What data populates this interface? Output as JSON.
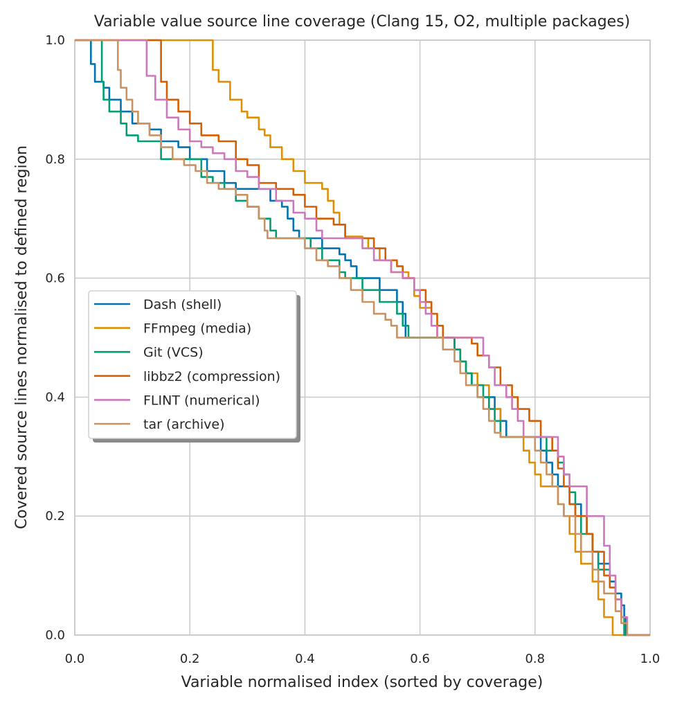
{
  "chart_data": {
    "type": "line",
    "title": "Variable value source line coverage (Clang 15, O2, multiple packages)",
    "xlabel": "Variable normalised index (sorted by coverage)",
    "ylabel": "Covered source lines normalised to defined region",
    "xlim": [
      0,
      1
    ],
    "ylim": [
      0,
      1
    ],
    "xticks": [
      "0.0",
      "0.2",
      "0.4",
      "0.6",
      "0.8",
      "1.0"
    ],
    "yticks": [
      "0.0",
      "0.2",
      "0.4",
      "0.6",
      "0.8",
      "1.0"
    ],
    "grid": true,
    "legend_position": "center-left",
    "series": [
      {
        "name": "Dash (shell)",
        "color": "#0173b2",
        "points": [
          [
            0,
            1.0
          ],
          [
            0.026,
            1.0
          ],
          [
            0.028,
            0.96
          ],
          [
            0.035,
            0.93
          ],
          [
            0.05,
            0.92
          ],
          [
            0.06,
            0.9
          ],
          [
            0.08,
            0.88
          ],
          [
            0.1,
            0.86
          ],
          [
            0.13,
            0.85
          ],
          [
            0.15,
            0.83
          ],
          [
            0.18,
            0.82
          ],
          [
            0.2,
            0.8
          ],
          [
            0.22,
            0.8
          ],
          [
            0.23,
            0.78
          ],
          [
            0.25,
            0.78
          ],
          [
            0.26,
            0.76
          ],
          [
            0.28,
            0.75
          ],
          [
            0.33,
            0.75
          ],
          [
            0.34,
            0.73
          ],
          [
            0.36,
            0.72
          ],
          [
            0.37,
            0.7
          ],
          [
            0.38,
            0.68
          ],
          [
            0.39,
            0.667
          ],
          [
            0.42,
            0.667
          ],
          [
            0.43,
            0.65
          ],
          [
            0.46,
            0.64
          ],
          [
            0.47,
            0.63
          ],
          [
            0.48,
            0.62
          ],
          [
            0.49,
            0.6
          ],
          [
            0.52,
            0.6
          ],
          [
            0.53,
            0.58
          ],
          [
            0.56,
            0.56
          ],
          [
            0.57,
            0.54
          ],
          [
            0.575,
            0.5
          ],
          [
            0.65,
            0.5
          ],
          [
            0.66,
            0.48
          ],
          [
            0.67,
            0.46
          ],
          [
            0.68,
            0.44
          ],
          [
            0.69,
            0.42
          ],
          [
            0.7,
            0.4
          ],
          [
            0.72,
            0.4
          ],
          [
            0.73,
            0.38
          ],
          [
            0.74,
            0.36
          ],
          [
            0.75,
            0.333
          ],
          [
            0.8,
            0.333
          ],
          [
            0.81,
            0.31
          ],
          [
            0.82,
            0.29
          ],
          [
            0.83,
            0.27
          ],
          [
            0.84,
            0.25
          ],
          [
            0.86,
            0.22
          ],
          [
            0.88,
            0.2
          ],
          [
            0.89,
            0.17
          ],
          [
            0.9,
            0.14
          ],
          [
            0.91,
            0.12
          ],
          [
            0.93,
            0.09
          ],
          [
            0.94,
            0.07
          ],
          [
            0.95,
            0.05
          ],
          [
            0.955,
            0.03
          ],
          [
            0.958,
            0.0
          ]
        ]
      },
      {
        "name": "FFmpeg (media)",
        "color": "#de8f05",
        "points": [
          [
            0,
            1.0
          ],
          [
            0.237,
            1.0
          ],
          [
            0.24,
            0.95
          ],
          [
            0.25,
            0.93
          ],
          [
            0.27,
            0.9
          ],
          [
            0.29,
            0.88
          ],
          [
            0.3,
            0.87
          ],
          [
            0.32,
            0.85
          ],
          [
            0.33,
            0.84
          ],
          [
            0.34,
            0.82
          ],
          [
            0.36,
            0.8
          ],
          [
            0.38,
            0.78
          ],
          [
            0.4,
            0.76
          ],
          [
            0.43,
            0.75
          ],
          [
            0.44,
            0.73
          ],
          [
            0.45,
            0.71
          ],
          [
            0.46,
            0.69
          ],
          [
            0.47,
            0.67
          ],
          [
            0.5,
            0.667
          ],
          [
            0.51,
            0.65
          ],
          [
            0.53,
            0.63
          ],
          [
            0.55,
            0.61
          ],
          [
            0.58,
            0.6
          ],
          [
            0.59,
            0.57
          ],
          [
            0.6,
            0.55
          ],
          [
            0.62,
            0.52
          ],
          [
            0.63,
            0.5
          ],
          [
            0.65,
            0.5
          ],
          [
            0.66,
            0.48
          ],
          [
            0.67,
            0.46
          ],
          [
            0.68,
            0.44
          ],
          [
            0.7,
            0.42
          ],
          [
            0.72,
            0.38
          ],
          [
            0.74,
            0.333
          ],
          [
            0.77,
            0.333
          ],
          [
            0.78,
            0.31
          ],
          [
            0.79,
            0.29
          ],
          [
            0.8,
            0.27
          ],
          [
            0.81,
            0.25
          ],
          [
            0.83,
            0.25
          ],
          [
            0.84,
            0.22
          ],
          [
            0.85,
            0.2
          ],
          [
            0.86,
            0.17
          ],
          [
            0.87,
            0.14
          ],
          [
            0.88,
            0.12
          ],
          [
            0.9,
            0.09
          ],
          [
            0.91,
            0.06
          ],
          [
            0.92,
            0.03
          ],
          [
            0.935,
            0.0
          ]
        ]
      },
      {
        "name": "Git (VCS)",
        "color": "#029e73",
        "points": [
          [
            0,
            1.0
          ],
          [
            0.045,
            1.0
          ],
          [
            0.047,
            0.93
          ],
          [
            0.05,
            0.9
          ],
          [
            0.06,
            0.88
          ],
          [
            0.08,
            0.86
          ],
          [
            0.09,
            0.84
          ],
          [
            0.11,
            0.83
          ],
          [
            0.14,
            0.83
          ],
          [
            0.15,
            0.8
          ],
          [
            0.2,
            0.8
          ],
          [
            0.22,
            0.77
          ],
          [
            0.24,
            0.76
          ],
          [
            0.26,
            0.75
          ],
          [
            0.28,
            0.73
          ],
          [
            0.3,
            0.72
          ],
          [
            0.32,
            0.7
          ],
          [
            0.34,
            0.68
          ],
          [
            0.35,
            0.667
          ],
          [
            0.4,
            0.667
          ],
          [
            0.41,
            0.65
          ],
          [
            0.43,
            0.63
          ],
          [
            0.46,
            0.61
          ],
          [
            0.47,
            0.6
          ],
          [
            0.49,
            0.6
          ],
          [
            0.5,
            0.58
          ],
          [
            0.53,
            0.56
          ],
          [
            0.56,
            0.54
          ],
          [
            0.57,
            0.52
          ],
          [
            0.58,
            0.5
          ],
          [
            0.65,
            0.5
          ],
          [
            0.66,
            0.48
          ],
          [
            0.67,
            0.46
          ],
          [
            0.68,
            0.44
          ],
          [
            0.69,
            0.42
          ],
          [
            0.71,
            0.4
          ],
          [
            0.72,
            0.38
          ],
          [
            0.73,
            0.36
          ],
          [
            0.74,
            0.333
          ],
          [
            0.81,
            0.333
          ],
          [
            0.82,
            0.31
          ],
          [
            0.84,
            0.29
          ],
          [
            0.85,
            0.27
          ],
          [
            0.86,
            0.24
          ],
          [
            0.87,
            0.2
          ],
          [
            0.88,
            0.17
          ],
          [
            0.9,
            0.14
          ],
          [
            0.91,
            0.11
          ],
          [
            0.93,
            0.08
          ],
          [
            0.94,
            0.06
          ],
          [
            0.95,
            0.03
          ],
          [
            0.955,
            0.0
          ]
        ]
      },
      {
        "name": "libbz2 (compression)",
        "color": "#d55e00",
        "points": [
          [
            0,
            1.0
          ],
          [
            0.147,
            1.0
          ],
          [
            0.15,
            0.93
          ],
          [
            0.16,
            0.9
          ],
          [
            0.18,
            0.88
          ],
          [
            0.2,
            0.86
          ],
          [
            0.22,
            0.84
          ],
          [
            0.25,
            0.83
          ],
          [
            0.28,
            0.8
          ],
          [
            0.3,
            0.79
          ],
          [
            0.32,
            0.76
          ],
          [
            0.35,
            0.75
          ],
          [
            0.38,
            0.74
          ],
          [
            0.4,
            0.72
          ],
          [
            0.42,
            0.7
          ],
          [
            0.45,
            0.69
          ],
          [
            0.47,
            0.667
          ],
          [
            0.5,
            0.667
          ],
          [
            0.52,
            0.65
          ],
          [
            0.54,
            0.63
          ],
          [
            0.56,
            0.62
          ],
          [
            0.57,
            0.6
          ],
          [
            0.59,
            0.58
          ],
          [
            0.61,
            0.56
          ],
          [
            0.62,
            0.54
          ],
          [
            0.63,
            0.52
          ],
          [
            0.64,
            0.5
          ],
          [
            0.68,
            0.5
          ],
          [
            0.69,
            0.49
          ],
          [
            0.7,
            0.47
          ],
          [
            0.72,
            0.45
          ],
          [
            0.74,
            0.42
          ],
          [
            0.76,
            0.4
          ],
          [
            0.77,
            0.38
          ],
          [
            0.79,
            0.36
          ],
          [
            0.81,
            0.333
          ],
          [
            0.83,
            0.31
          ],
          [
            0.84,
            0.28
          ],
          [
            0.85,
            0.25
          ],
          [
            0.86,
            0.22
          ],
          [
            0.87,
            0.2
          ],
          [
            0.89,
            0.17
          ],
          [
            0.9,
            0.14
          ],
          [
            0.92,
            0.1
          ],
          [
            0.93,
            0.08
          ],
          [
            0.94,
            0.06
          ],
          [
            0.95,
            0.03
          ],
          [
            0.96,
            0.0
          ]
        ]
      },
      {
        "name": "FLINT (numerical)",
        "color": "#cc78bc",
        "points": [
          [
            0,
            1.0
          ],
          [
            0.12,
            1.0
          ],
          [
            0.125,
            0.94
          ],
          [
            0.14,
            0.9
          ],
          [
            0.16,
            0.87
          ],
          [
            0.18,
            0.85
          ],
          [
            0.2,
            0.83
          ],
          [
            0.22,
            0.82
          ],
          [
            0.24,
            0.81
          ],
          [
            0.26,
            0.8
          ],
          [
            0.28,
            0.78
          ],
          [
            0.3,
            0.77
          ],
          [
            0.32,
            0.75
          ],
          [
            0.35,
            0.73
          ],
          [
            0.38,
            0.71
          ],
          [
            0.4,
            0.7
          ],
          [
            0.42,
            0.68
          ],
          [
            0.43,
            0.667
          ],
          [
            0.49,
            0.667
          ],
          [
            0.5,
            0.65
          ],
          [
            0.52,
            0.63
          ],
          [
            0.55,
            0.61
          ],
          [
            0.57,
            0.6
          ],
          [
            0.59,
            0.58
          ],
          [
            0.6,
            0.56
          ],
          [
            0.61,
            0.54
          ],
          [
            0.62,
            0.52
          ],
          [
            0.63,
            0.5
          ],
          [
            0.7,
            0.5
          ],
          [
            0.71,
            0.47
          ],
          [
            0.72,
            0.45
          ],
          [
            0.73,
            0.42
          ],
          [
            0.75,
            0.4
          ],
          [
            0.76,
            0.38
          ],
          [
            0.77,
            0.36
          ],
          [
            0.78,
            0.333
          ],
          [
            0.83,
            0.333
          ],
          [
            0.84,
            0.3
          ],
          [
            0.85,
            0.27
          ],
          [
            0.86,
            0.25
          ],
          [
            0.88,
            0.25
          ],
          [
            0.89,
            0.2
          ],
          [
            0.91,
            0.2
          ],
          [
            0.92,
            0.15
          ],
          [
            0.93,
            0.1
          ],
          [
            0.94,
            0.06
          ],
          [
            0.95,
            0.03
          ],
          [
            0.96,
            0.0
          ]
        ]
      },
      {
        "name": "tar (archive)",
        "color": "#ca9161",
        "points": [
          [
            0,
            1.0
          ],
          [
            0.072,
            1.0
          ],
          [
            0.075,
            0.95
          ],
          [
            0.08,
            0.92
          ],
          [
            0.09,
            0.9
          ],
          [
            0.1,
            0.88
          ],
          [
            0.11,
            0.86
          ],
          [
            0.13,
            0.84
          ],
          [
            0.15,
            0.82
          ],
          [
            0.17,
            0.8
          ],
          [
            0.19,
            0.79
          ],
          [
            0.21,
            0.78
          ],
          [
            0.23,
            0.76
          ],
          [
            0.25,
            0.75
          ],
          [
            0.28,
            0.74
          ],
          [
            0.3,
            0.72
          ],
          [
            0.32,
            0.7
          ],
          [
            0.33,
            0.68
          ],
          [
            0.335,
            0.667
          ],
          [
            0.39,
            0.667
          ],
          [
            0.4,
            0.65
          ],
          [
            0.42,
            0.63
          ],
          [
            0.44,
            0.62
          ],
          [
            0.46,
            0.6
          ],
          [
            0.48,
            0.58
          ],
          [
            0.5,
            0.56
          ],
          [
            0.52,
            0.54
          ],
          [
            0.54,
            0.53
          ],
          [
            0.55,
            0.52
          ],
          [
            0.56,
            0.5
          ],
          [
            0.62,
            0.5
          ],
          [
            0.64,
            0.48
          ],
          [
            0.66,
            0.46
          ],
          [
            0.67,
            0.44
          ],
          [
            0.68,
            0.42
          ],
          [
            0.7,
            0.4
          ],
          [
            0.71,
            0.38
          ],
          [
            0.72,
            0.36
          ],
          [
            0.73,
            0.34
          ],
          [
            0.74,
            0.333
          ],
          [
            0.79,
            0.333
          ],
          [
            0.8,
            0.31
          ],
          [
            0.81,
            0.29
          ],
          [
            0.82,
            0.27
          ],
          [
            0.83,
            0.25
          ],
          [
            0.84,
            0.22
          ],
          [
            0.85,
            0.2
          ],
          [
            0.87,
            0.17
          ],
          [
            0.88,
            0.14
          ],
          [
            0.9,
            0.11
          ],
          [
            0.91,
            0.09
          ],
          [
            0.92,
            0.07
          ],
          [
            0.94,
            0.04
          ],
          [
            0.95,
            0.02
          ],
          [
            0.96,
            0.0
          ]
        ]
      }
    ]
  }
}
